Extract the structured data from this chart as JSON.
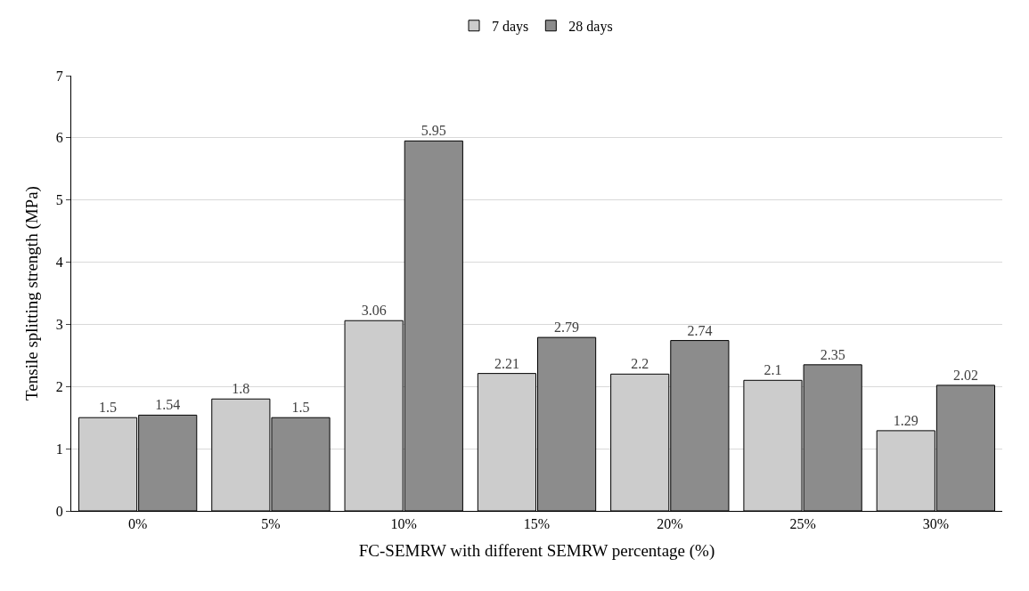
{
  "chart_data": {
    "type": "bar",
    "xlabel": "FC-SEMRW with different SEMRW percentage (%)",
    "ylabel": "Tensile splitting strength (MPa)",
    "categories": [
      "0%",
      "5%",
      "10%",
      "15%",
      "20%",
      "25%",
      "30%"
    ],
    "series": [
      {
        "name": "7 days",
        "color": "#cccccc",
        "values": [
          1.5,
          1.8,
          3.06,
          2.21,
          2.2,
          2.1,
          1.29
        ]
      },
      {
        "name": "28 days",
        "color": "#8c8c8c",
        "values": [
          1.54,
          1.5,
          5.95,
          2.79,
          2.74,
          2.35,
          2.02
        ]
      }
    ],
    "ylim": [
      0,
      7
    ],
    "yticks": [
      0,
      1,
      2,
      3,
      4,
      5,
      6,
      7
    ],
    "grid": "y",
    "legend": "top",
    "data_labels": true
  }
}
